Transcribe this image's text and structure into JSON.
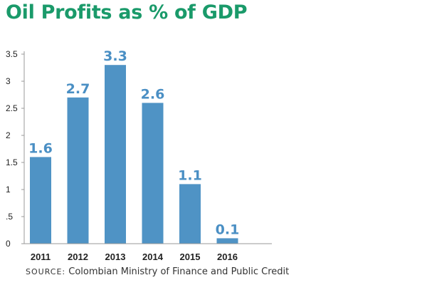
{
  "chart_data": {
    "type": "bar",
    "title": "Oil Profits as % of GDP",
    "categories": [
      "2011",
      "2012",
      "2013",
      "2014",
      "2015",
      "2016"
    ],
    "values": [
      1.6,
      2.7,
      3.3,
      2.6,
      1.1,
      0.1
    ],
    "value_labels": [
      "1.6",
      "2.7",
      "3.3",
      "2.6",
      "1.1",
      "0.1"
    ],
    "y_ticks": [
      0,
      0.5,
      1,
      1.5,
      2,
      2.5,
      3,
      3.5
    ],
    "y_tick_labels": [
      "0",
      ".5",
      "1",
      "1.5",
      "2",
      "2.5",
      "3",
      "3.5"
    ],
    "ylim": [
      0,
      3.5
    ],
    "xlabel": "",
    "ylabel": "",
    "bar_color": "#4f93c5",
    "label_color": "#4a8fc4",
    "title_color": "#1a9a6a",
    "grid": false
  },
  "source": {
    "prefix": "SOURCE:",
    "text": "Colombian Ministry of Finance and Public Credit"
  }
}
